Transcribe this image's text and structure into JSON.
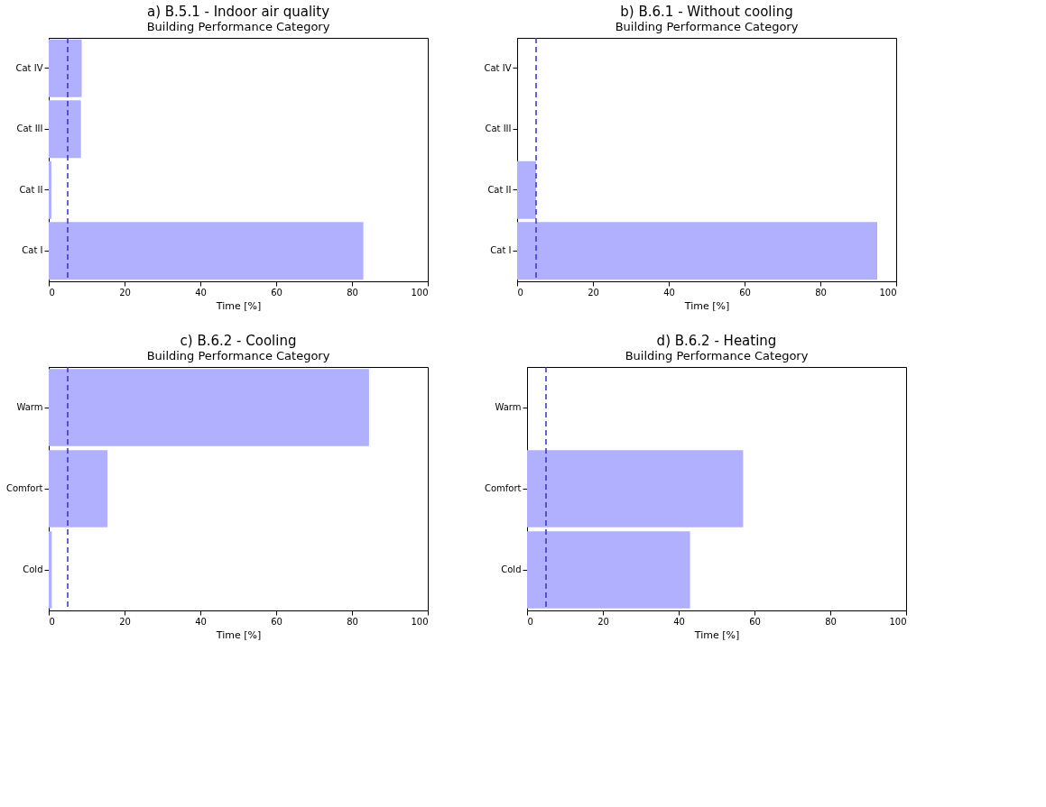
{
  "chart_data": [
    {
      "type": "bar",
      "orientation": "horizontal",
      "title": "a) B.5.1 - Indoor air quality",
      "subtitle": "Building Performance Category",
      "xlabel": "Time [%]",
      "categories": [
        "Cat IV",
        "Cat III",
        "Cat II",
        "Cat I"
      ],
      "values": [
        8.7,
        8.5,
        0.7,
        83
      ],
      "color": "#b0b0ff",
      "xlim": [
        0,
        100
      ],
      "xticks": [
        0,
        20,
        40,
        60,
        80,
        100
      ],
      "grid": false,
      "ref_lines": [
        {
          "axis": "x",
          "value": 5,
          "color": "#3333cc",
          "line_style": "dashed"
        }
      ]
    },
    {
      "type": "bar",
      "orientation": "horizontal",
      "title": "b) B.6.1 - Without cooling",
      "subtitle": "Building Performance Category",
      "xlabel": "Time [%]",
      "categories": [
        "Cat IV",
        "Cat III",
        "Cat II",
        "Cat I"
      ],
      "values": [
        0,
        0,
        5,
        95
      ],
      "color": "#b0b0ff",
      "xlim": [
        0,
        100
      ],
      "xticks": [
        0,
        20,
        40,
        60,
        80,
        100
      ],
      "grid": false,
      "ref_lines": [
        {
          "axis": "x",
          "value": 5,
          "color": "#3333cc",
          "line_style": "dashed"
        }
      ]
    },
    {
      "type": "bar",
      "orientation": "horizontal",
      "title": "c) B.6.2 - Cooling",
      "subtitle": "Building Performance Category",
      "xlabel": "Time [%]",
      "categories": [
        "Warm",
        "Comfort",
        "Cold"
      ],
      "values": [
        84.5,
        15.5,
        0.8
      ],
      "color": "#b0b0ff",
      "xlim": [
        0,
        100
      ],
      "xticks": [
        0,
        20,
        40,
        60,
        80,
        100
      ],
      "grid": false,
      "ref_lines": [
        {
          "axis": "x",
          "value": 5,
          "color": "#3333cc",
          "line_style": "dashed"
        }
      ]
    },
    {
      "type": "bar",
      "orientation": "horizontal",
      "title": "d) B.6.2 - Heating",
      "subtitle": "Building Performance Category",
      "xlabel": "Time [%]",
      "categories": [
        "Warm",
        "Comfort",
        "Cold"
      ],
      "values": [
        0,
        57,
        43
      ],
      "color": "#b0b0ff",
      "xlim": [
        0,
        100
      ],
      "xticks": [
        0,
        20,
        40,
        60,
        80,
        100
      ],
      "grid": false,
      "ref_lines": [
        {
          "axis": "x",
          "value": 5,
          "color": "#3333cc",
          "line_style": "dashed"
        }
      ]
    }
  ]
}
